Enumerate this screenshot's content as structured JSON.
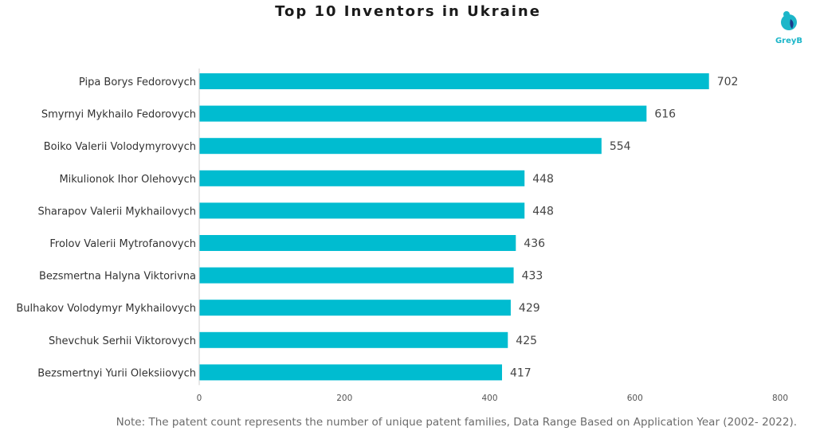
{
  "chart_data": {
    "type": "bar",
    "orientation": "horizontal",
    "title": "Top 10 Inventors in Ukraine",
    "categories": [
      "Pipa Borys Fedorovych",
      "Smyrnyi Mykhailo Fedorovych",
      "Boiko Valerii Volodymyrovych",
      "Mikulionok Ihor Olehovych",
      "Sharapov Valerii Mykhailovych",
      "Frolov Valerii Mytrofanovych",
      "Bezsmertna Halyna Viktorivna",
      "Bulhakov Volodymyr Mykhailovych",
      "Shevchuk Serhii Viktorovych",
      "Bezsmertnyi Yurii Oleksiiovych"
    ],
    "values": [
      702,
      616,
      554,
      448,
      448,
      436,
      433,
      429,
      425,
      417
    ],
    "xlim": [
      0,
      800
    ],
    "xticks": [
      0,
      200,
      400,
      600,
      800
    ],
    "grid": false,
    "bar_color": "#00bcd0",
    "note": "Note: The patent count represents the number of unique patent families, Data Range Based on Application Year (2002- 2022)."
  },
  "logo": {
    "text": "GreyB",
    "color": "#1cb6c9",
    "accent": "#1a3a8a"
  }
}
